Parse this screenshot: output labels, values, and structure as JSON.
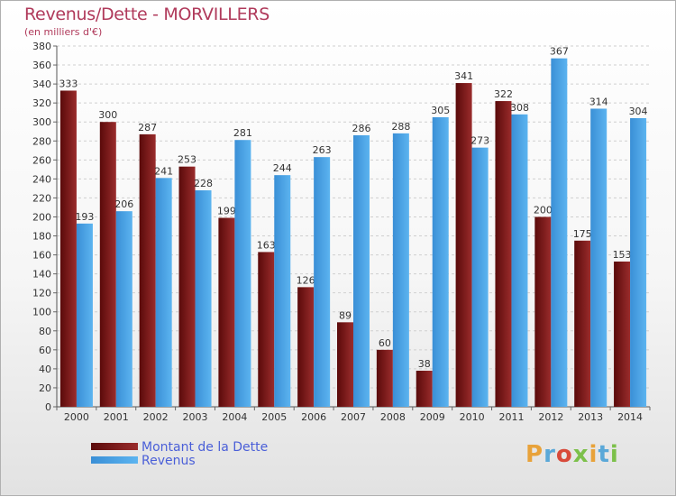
{
  "header": {
    "title": "Revenus/Dette - MORVILLERS",
    "subtitle": "(en milliers d'€)"
  },
  "chart_data": {
    "type": "bar",
    "categories": [
      "2000",
      "2001",
      "2002",
      "2003",
      "2004",
      "2005",
      "2006",
      "2007",
      "2008",
      "2009",
      "2010",
      "2011",
      "2012",
      "2013",
      "2014"
    ],
    "series": [
      {
        "name": "Montant de la Dette",
        "color": "#8b1a1a",
        "values": [
          333,
          300,
          287,
          253,
          199,
          163,
          126,
          89,
          60,
          38,
          341,
          322,
          200,
          175,
          153
        ]
      },
      {
        "name": "Revenus",
        "color": "#4da6e8",
        "values": [
          193,
          206,
          241,
          228,
          281,
          244,
          263,
          286,
          288,
          305,
          273,
          308,
          367,
          314,
          304
        ]
      }
    ],
    "ylim": [
      0,
      380
    ],
    "ytick_step": 20,
    "grid": true,
    "legend": "bottom-left",
    "xlabel": "",
    "ylabel": ""
  },
  "logo": {
    "text": "Proxiti",
    "colors": [
      "#e8a23a",
      "#5aa8d8",
      "#d84a3a",
      "#7cc04a",
      "#e8a23a",
      "#5aa8d8",
      "#7cc04a"
    ]
  }
}
